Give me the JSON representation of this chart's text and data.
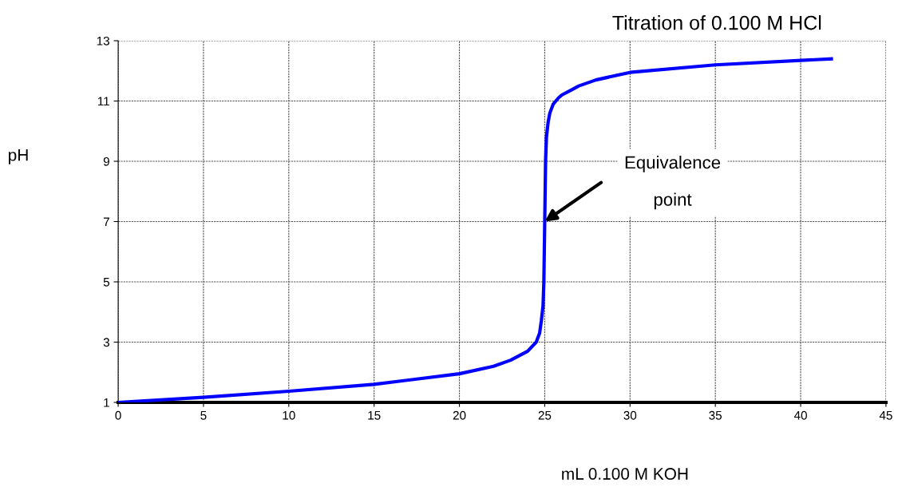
{
  "chart_data": {
    "type": "line",
    "title": "Titration of 0.100 M HCl",
    "xlabel": "mL 0.100 M KOH",
    "ylabel": "pH",
    "x": [
      0,
      5,
      10,
      15,
      20,
      22,
      23,
      24,
      24.5,
      24.7,
      24.8,
      24.9,
      24.95,
      25,
      25.05,
      25.1,
      25.2,
      25.3,
      25.5,
      25.8,
      26,
      26.5,
      27,
      28,
      30,
      35,
      41.8
    ],
    "series": [
      {
        "color": "#0000ff",
        "values": [
          1,
          1.17,
          1.37,
          1.6,
          1.95,
          2.2,
          2.4,
          2.7,
          3.0,
          3.3,
          3.7,
          4.2,
          5,
          7,
          9,
          9.8,
          10.3,
          10.6,
          10.9,
          11.1,
          11.2,
          11.35,
          11.5,
          11.7,
          11.95,
          12.2,
          12.4
        ]
      }
    ],
    "xlim": [
      0,
      45
    ],
    "xticks": [
      0,
      5,
      10,
      15,
      20,
      25,
      30,
      35,
      40,
      45
    ],
    "ylim": [
      1,
      13
    ],
    "yticks": [
      1,
      3,
      5,
      7,
      9,
      11,
      13
    ],
    "grid": true,
    "marker": "none",
    "line_style": "solid",
    "annotations": [
      "Equivalence\npoint"
    ]
  }
}
